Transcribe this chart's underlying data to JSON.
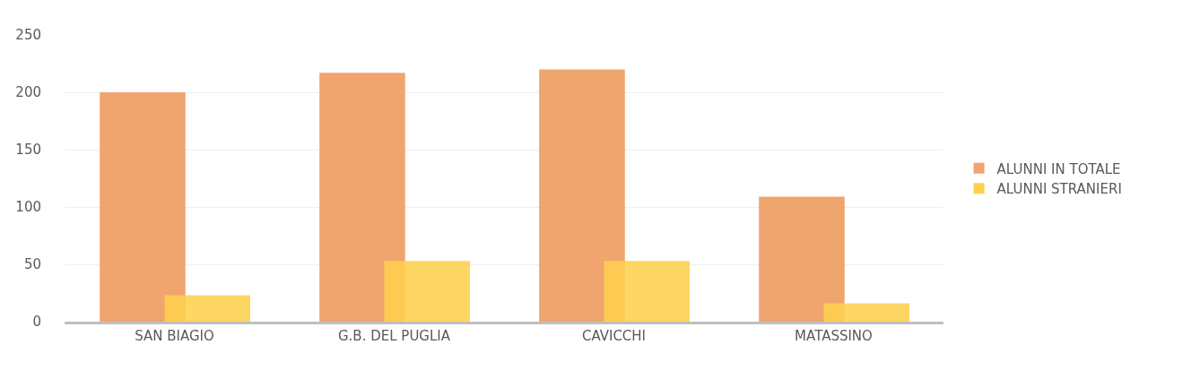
{
  "chart_data": {
    "type": "bar",
    "categories": [
      "SAN BIAGIO",
      "G.B. DEL PUGLIA",
      "CAVICCHI",
      "MATASSINO"
    ],
    "series": [
      {
        "name": "ALUNNI IN TOTALE",
        "color": "#f0a46e",
        "values": [
          200,
          217,
          220,
          109
        ]
      },
      {
        "name": "ALUNNI STRANIERI",
        "color": "#fed04e",
        "values": [
          23,
          53,
          53,
          16
        ]
      }
    ],
    "ylim": [
      0,
      250
    ],
    "yticks": [
      0,
      50,
      100,
      150,
      200,
      250
    ],
    "grid": "y",
    "legend": "right"
  }
}
